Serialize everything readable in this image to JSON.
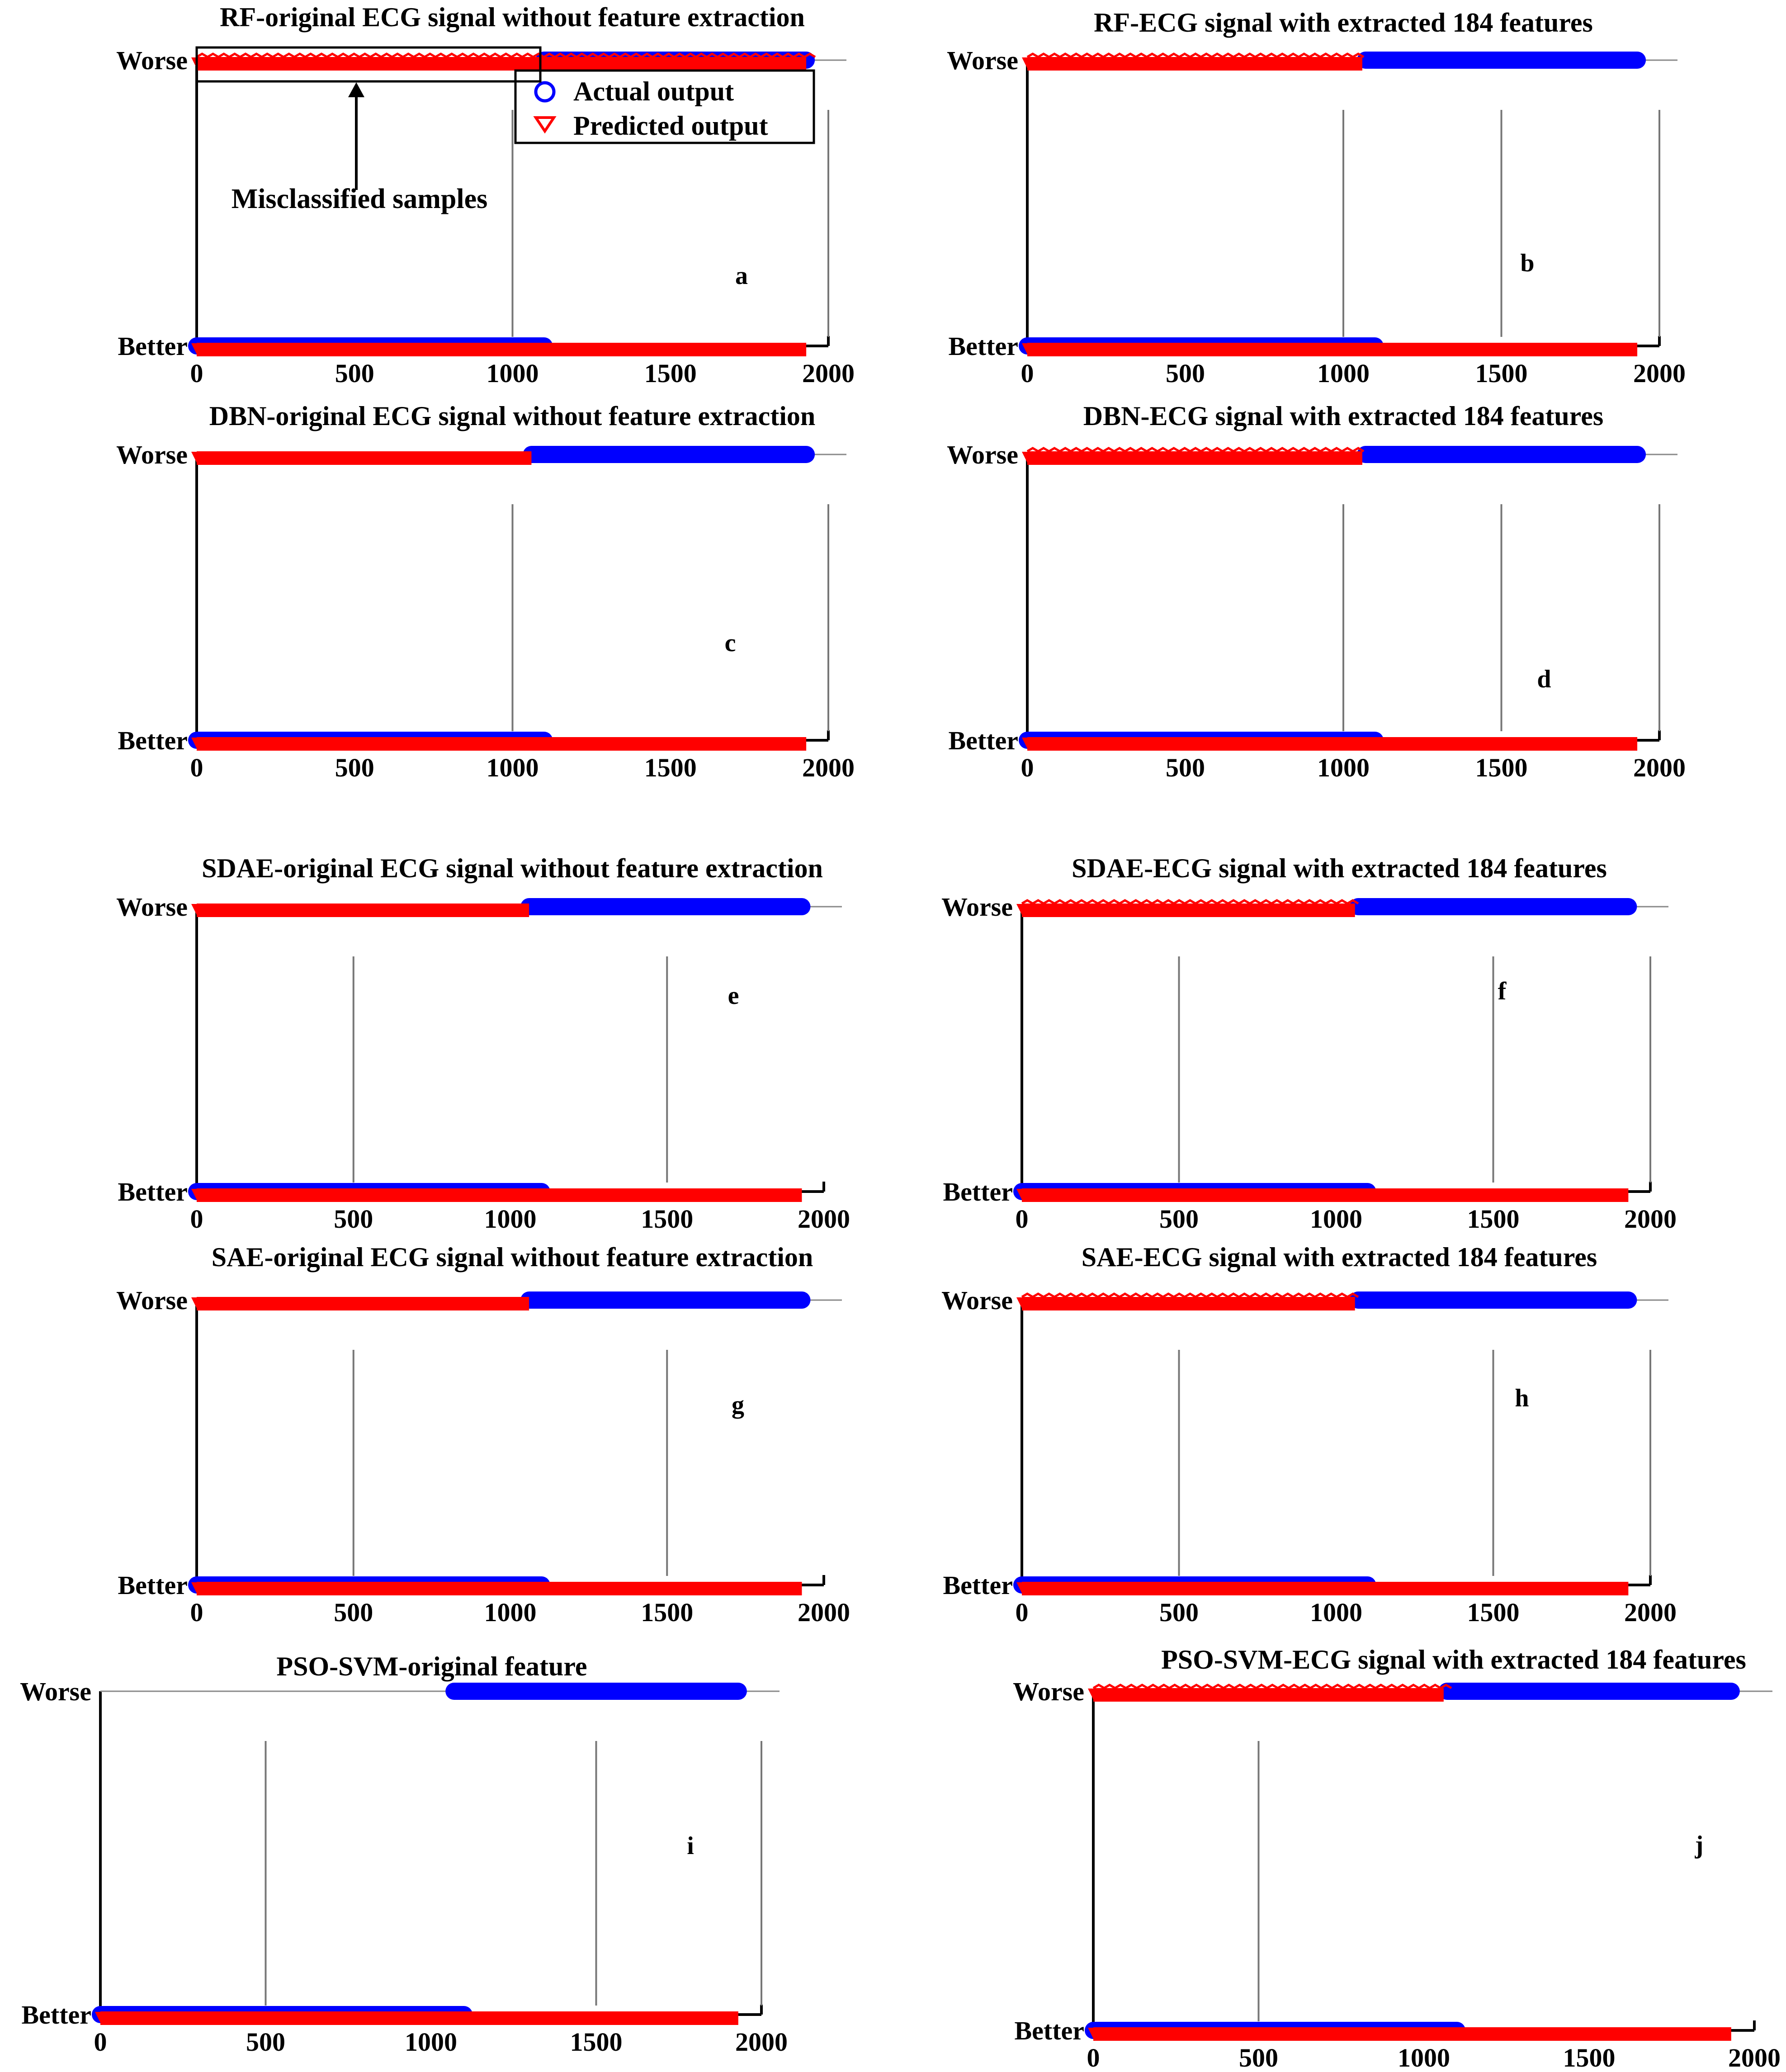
{
  "figure": {
    "legend": {
      "actual_label": "Actual output",
      "predicted_label": "Predicted output",
      "actual_color": "#0000ff",
      "predicted_color": "#ff0000"
    },
    "annotation": "Misclassified samples"
  },
  "chart_data": [
    {
      "id": "a",
      "type": "scatter",
      "title": "RF-original ECG signal without feature extraction",
      "panel_label": "a",
      "ylabel_top": "Worse",
      "ylabel_bottom": "Better",
      "xticks": [
        "0",
        "500",
        "1000",
        "1500",
        "2000"
      ],
      "xlim": [
        0,
        2000
      ],
      "categories": [
        "Better",
        "Worse"
      ],
      "series": [
        {
          "name": "Actual output",
          "segments": [
            {
              "class": "Better",
              "from": 0,
              "to": 1100
            },
            {
              "class": "Worse",
              "from": 1100,
              "to": 1930
            }
          ]
        },
        {
          "name": "Predicted output",
          "segments": [
            {
              "class": "Worse",
              "from": 0,
              "to": 1930,
              "noisy": true
            },
            {
              "class": "Better",
              "from": 0,
              "to": 1930
            }
          ]
        }
      ]
    },
    {
      "id": "b",
      "type": "scatter",
      "title": "RF-ECG signal with extracted 184 features",
      "panel_label": "b",
      "ylabel_top": "Worse",
      "ylabel_bottom": "Better",
      "xticks": [
        "0",
        "500",
        "1000",
        "1500",
        "2000"
      ],
      "xlim": [
        0,
        2000
      ],
      "categories": [
        "Better",
        "Worse"
      ],
      "series": [
        {
          "name": "Actual output",
          "segments": [
            {
              "class": "Better",
              "from": 0,
              "to": 1100
            },
            {
              "class": "Worse",
              "from": 1070,
              "to": 1930
            }
          ]
        },
        {
          "name": "Predicted output",
          "segments": [
            {
              "class": "Worse",
              "from": 0,
              "to": 1060,
              "noisy": true
            },
            {
              "class": "Better",
              "from": 0,
              "to": 1930
            }
          ]
        }
      ]
    },
    {
      "id": "c",
      "type": "scatter",
      "title": "DBN-original ECG signal without feature extraction",
      "panel_label": "c",
      "ylabel_top": "Worse",
      "ylabel_bottom": "Better",
      "xticks": [
        "0",
        "500",
        "1000",
        "1500",
        "2000"
      ],
      "xlim": [
        0,
        2000
      ],
      "categories": [
        "Better",
        "Worse"
      ],
      "series": [
        {
          "name": "Actual output",
          "segments": [
            {
              "class": "Better",
              "from": 0,
              "to": 1100
            },
            {
              "class": "Worse",
              "from": 1060,
              "to": 1930
            }
          ]
        },
        {
          "name": "Predicted output",
          "segments": [
            {
              "class": "Worse",
              "from": 0,
              "to": 1060
            },
            {
              "class": "Better",
              "from": 0,
              "to": 1930
            }
          ]
        }
      ]
    },
    {
      "id": "d",
      "type": "scatter",
      "title": "DBN-ECG signal with extracted 184 features",
      "panel_label": "d",
      "ylabel_top": "Worse",
      "ylabel_bottom": "Better",
      "xticks": [
        "0",
        "500",
        "1000",
        "1500",
        "2000"
      ],
      "xlim": [
        0,
        2000
      ],
      "categories": [
        "Better",
        "Worse"
      ],
      "series": [
        {
          "name": "Actual output",
          "segments": [
            {
              "class": "Better",
              "from": 0,
              "to": 1100
            },
            {
              "class": "Worse",
              "from": 1070,
              "to": 1930
            }
          ]
        },
        {
          "name": "Predicted output",
          "segments": [
            {
              "class": "Worse",
              "from": 0,
              "to": 1060,
              "noisy": true
            },
            {
              "class": "Better",
              "from": 0,
              "to": 1930
            }
          ]
        }
      ]
    },
    {
      "id": "e",
      "type": "scatter",
      "title": "SDAE-original ECG signal without feature extraction",
      "panel_label": "e",
      "ylabel_top": "Worse",
      "ylabel_bottom": "Better",
      "xticks": [
        "0",
        "500",
        "1000",
        "1500",
        "2000"
      ],
      "xlim": [
        0,
        2000
      ],
      "categories": [
        "Better",
        "Worse"
      ],
      "series": [
        {
          "name": "Actual output",
          "segments": [
            {
              "class": "Better",
              "from": 0,
              "to": 1100
            },
            {
              "class": "Worse",
              "from": 1060,
              "to": 1930
            }
          ]
        },
        {
          "name": "Predicted output",
          "segments": [
            {
              "class": "Worse",
              "from": 0,
              "to": 1060
            },
            {
              "class": "Better",
              "from": 0,
              "to": 1930
            }
          ]
        }
      ]
    },
    {
      "id": "f",
      "type": "scatter",
      "title": "SDAE-ECG signal with extracted 184 features",
      "panel_label": "f",
      "ylabel_top": "Worse",
      "ylabel_bottom": "Better",
      "xticks": [
        "0",
        "500",
        "1000",
        "1500",
        "2000"
      ],
      "xlim": [
        0,
        2000
      ],
      "categories": [
        "Better",
        "Worse"
      ],
      "series": [
        {
          "name": "Actual output",
          "segments": [
            {
              "class": "Better",
              "from": 0,
              "to": 1100
            },
            {
              "class": "Worse",
              "from": 1070,
              "to": 1930
            }
          ]
        },
        {
          "name": "Predicted output",
          "segments": [
            {
              "class": "Worse",
              "from": 0,
              "to": 1060,
              "noisy": true
            },
            {
              "class": "Better",
              "from": 0,
              "to": 1930
            }
          ]
        }
      ]
    },
    {
      "id": "g",
      "type": "scatter",
      "title": "SAE-original ECG signal without feature extraction",
      "panel_label": "g",
      "ylabel_top": "Worse",
      "ylabel_bottom": "Better",
      "xticks": [
        "0",
        "500",
        "1000",
        "1500",
        "2000"
      ],
      "xlim": [
        0,
        2000
      ],
      "categories": [
        "Better",
        "Worse"
      ],
      "series": [
        {
          "name": "Actual output",
          "segments": [
            {
              "class": "Better",
              "from": 0,
              "to": 1100
            },
            {
              "class": "Worse",
              "from": 1060,
              "to": 1930
            }
          ]
        },
        {
          "name": "Predicted output",
          "segments": [
            {
              "class": "Worse",
              "from": 0,
              "to": 1060
            },
            {
              "class": "Better",
              "from": 0,
              "to": 1930
            }
          ]
        }
      ]
    },
    {
      "id": "h",
      "type": "scatter",
      "title": "SAE-ECG signal with extracted 184 features",
      "panel_label": "h",
      "ylabel_top": "Worse",
      "ylabel_bottom": "Better",
      "xticks": [
        "0",
        "500",
        "1000",
        "1500",
        "2000"
      ],
      "xlim": [
        0,
        2000
      ],
      "categories": [
        "Better",
        "Worse"
      ],
      "series": [
        {
          "name": "Actual output",
          "segments": [
            {
              "class": "Better",
              "from": 0,
              "to": 1100
            },
            {
              "class": "Worse",
              "from": 1070,
              "to": 1930
            }
          ]
        },
        {
          "name": "Predicted output",
          "segments": [
            {
              "class": "Worse",
              "from": 0,
              "to": 1060,
              "noisy": true
            },
            {
              "class": "Better",
              "from": 0,
              "to": 1930
            }
          ]
        }
      ]
    },
    {
      "id": "i",
      "type": "scatter",
      "title": "PSO-SVM-original feature",
      "panel_label": "i",
      "ylabel_top": "Worse",
      "ylabel_bottom": "Better",
      "xticks": [
        "0",
        "500",
        "1000",
        "1500",
        "2000"
      ],
      "xlim": [
        0,
        2000
      ],
      "categories": [
        "Better",
        "Worse"
      ],
      "series": [
        {
          "name": "Actual output",
          "segments": [
            {
              "class": "Better",
              "from": 0,
              "to": 1100
            },
            {
              "class": "Worse",
              "from": 1070,
              "to": 1930
            }
          ]
        },
        {
          "name": "Predicted output",
          "segments": [
            {
              "class": "Better",
              "from": 0,
              "to": 1930
            }
          ]
        }
      ]
    },
    {
      "id": "j",
      "type": "scatter",
      "title": "PSO-SVM-ECG signal with extracted 184 features",
      "panel_label": "j",
      "ylabel_top": "Worse",
      "ylabel_bottom": "Better",
      "xticks": [
        "0",
        "500",
        "1000",
        "1500",
        "2000"
      ],
      "xlim": [
        0,
        2000
      ],
      "categories": [
        "Better",
        "Worse"
      ],
      "series": [
        {
          "name": "Actual output",
          "segments": [
            {
              "class": "Better",
              "from": 0,
              "to": 1100
            },
            {
              "class": "Worse",
              "from": 1070,
              "to": 1930
            }
          ]
        },
        {
          "name": "Predicted output",
          "segments": [
            {
              "class": "Worse",
              "from": 0,
              "to": 1060,
              "noisy": true
            },
            {
              "class": "Better",
              "from": 0,
              "to": 1930
            }
          ]
        }
      ]
    }
  ]
}
